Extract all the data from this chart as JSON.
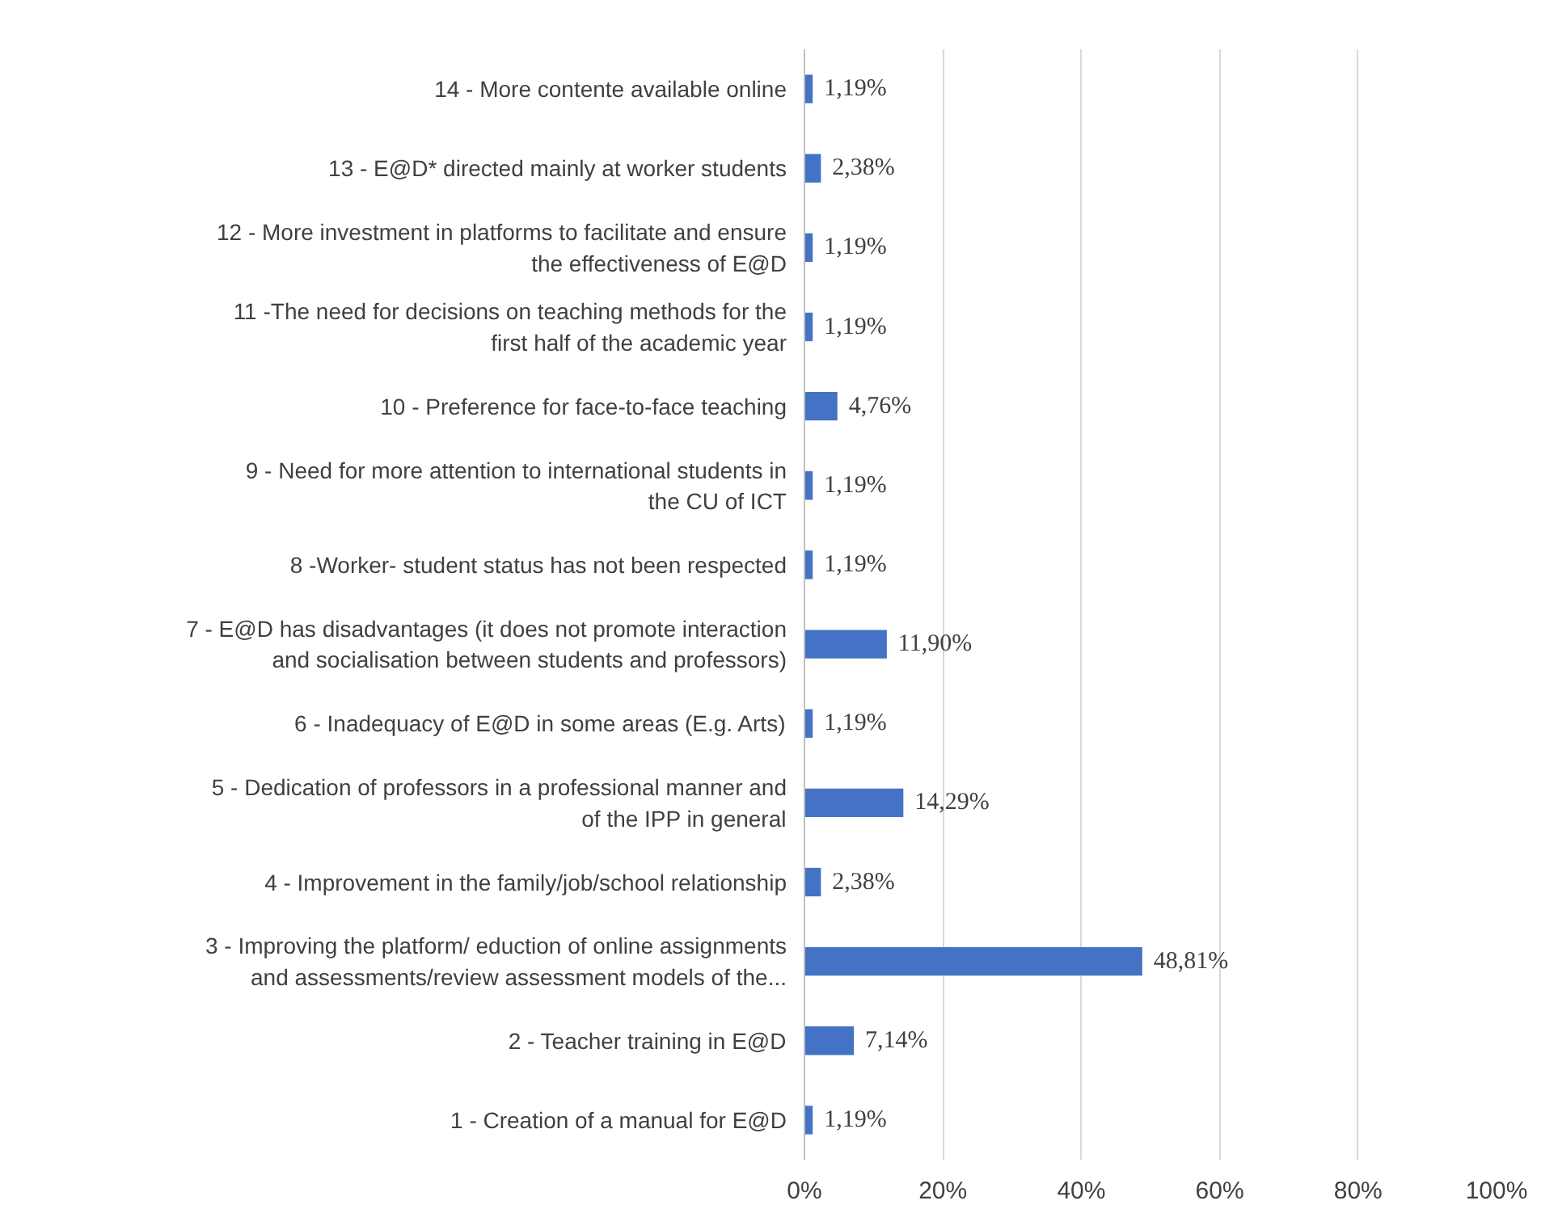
{
  "chart_data": {
    "type": "bar",
    "orientation": "horizontal",
    "color": "#4472c4",
    "categories": [
      "14 - More contente available online",
      "13 - E@D* directed mainly at worker students",
      "12 - More investment in platforms to facilitate and ensure the effectiveness of E@D",
      "11 -The need for decisions on teaching methods for the first half of the academic year",
      "10 - Preference for face-to-face teaching",
      "9 - Need for more attention to international students in the CU of ICT",
      "8 -Worker- student status has not been respected",
      "7 - E@D has disadvantages (it does not promote interaction and socialisation between students and professors)",
      "6 - Inadequacy of E@D in some areas (E.g. Arts)",
      "5 - Dedication of professors in a professional manner and of the IPP in general",
      "4 - Improvement in the family/job/school relationship",
      "3 - Improving the platform/ eduction of online assignments and assessments/review assessment models of the...",
      "2 - Teacher training in E@D",
      "1 - Creation of a manual for E@D"
    ],
    "values": [
      1.19,
      2.38,
      1.19,
      1.19,
      4.76,
      1.19,
      1.19,
      11.9,
      1.19,
      14.29,
      2.38,
      48.81,
      7.14,
      1.19
    ],
    "value_labels": [
      "1,19%",
      "2,38%",
      "1,19%",
      "1,19%",
      "4,76%",
      "1,19%",
      "1,19%",
      "11,90%",
      "1,19%",
      "14,29%",
      "2,38%",
      "48,81%",
      "7,14%",
      "1,19%"
    ],
    "xlim": [
      0,
      100
    ],
    "xticks": [
      {
        "value": 0,
        "label": "0%"
      },
      {
        "value": 20,
        "label": "20%"
      },
      {
        "value": 40,
        "label": "40%"
      },
      {
        "value": 60,
        "label": "60%"
      },
      {
        "value": 80,
        "label": "80%"
      },
      {
        "value": 100,
        "label": "100%"
      }
    ],
    "grid": "x"
  }
}
